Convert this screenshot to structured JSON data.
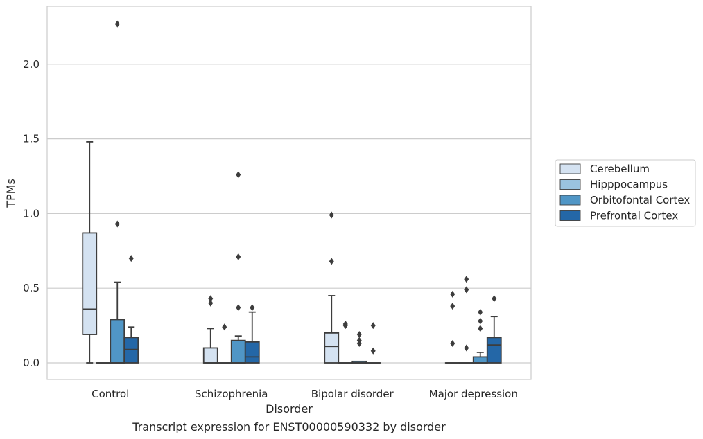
{
  "chart_data": {
    "type": "box",
    "title": "",
    "caption": "Transcript expression for ENST00000590332 by disorder",
    "xlabel": "Disorder",
    "ylabel": "TPMs",
    "ylim": [
      -0.11,
      2.4
    ],
    "yticks": [
      "0.0",
      "0.5",
      "1.0",
      "1.5",
      "2.0"
    ],
    "grid": "horizontal",
    "legend_position": "right",
    "categories": [
      "Control",
      "Schizophrenia",
      "Bipolar disorder",
      "Major depression"
    ],
    "series": [
      {
        "name": "Cerebellum",
        "color": "#d4e2f1",
        "boxes": [
          {
            "q1": 0.19,
            "median": 0.36,
            "q3": 0.87,
            "whislo": 0.0,
            "whishi": 1.48,
            "fliers": []
          },
          {
            "q1": 0.0,
            "median": 0.0,
            "q3": 0.1,
            "whislo": 0.0,
            "whishi": 0.23,
            "fliers": [
              0.43,
              0.4
            ]
          },
          {
            "q1": 0.0,
            "median": 0.11,
            "q3": 0.2,
            "whislo": 0.0,
            "whishi": 0.45,
            "fliers": [
              0.99,
              0.68
            ]
          },
          {
            "q1": 0.0,
            "median": 0.0,
            "q3": 0.0,
            "whislo": 0.0,
            "whishi": 0.0,
            "fliers": [
              0.46,
              0.38,
              0.13
            ]
          }
        ]
      },
      {
        "name": "Hipppocampus",
        "color": "#9ac3df",
        "boxes": [
          {
            "q1": 0.0,
            "median": 0.0,
            "q3": 0.0,
            "whislo": 0.0,
            "whishi": 0.0,
            "fliers": []
          },
          {
            "q1": 0.0,
            "median": 0.0,
            "q3": 0.0,
            "whislo": 0.0,
            "whishi": 0.0,
            "fliers": [
              0.24
            ]
          },
          {
            "q1": 0.0,
            "median": 0.0,
            "q3": 0.0,
            "whislo": 0.0,
            "whishi": 0.0,
            "fliers": [
              0.26,
              0.25
            ]
          },
          {
            "q1": 0.0,
            "median": 0.0,
            "q3": 0.0,
            "whislo": 0.0,
            "whishi": 0.0,
            "fliers": [
              0.56,
              0.49,
              0.1
            ]
          }
        ]
      },
      {
        "name": "Orbitofontal Cortex",
        "color": "#5096c6",
        "boxes": [
          {
            "q1": 0.0,
            "median": 0.0,
            "q3": 0.29,
            "whislo": 0.0,
            "whishi": 0.54,
            "fliers": [
              2.27,
              0.93
            ]
          },
          {
            "q1": 0.0,
            "median": 0.0,
            "q3": 0.15,
            "whislo": 0.0,
            "whishi": 0.18,
            "fliers": [
              1.26,
              0.71,
              0.37
            ]
          },
          {
            "q1": 0.0,
            "median": 0.0,
            "q3": 0.01,
            "whislo": 0.0,
            "whishi": 0.01,
            "fliers": [
              0.19,
              0.15,
              0.13
            ]
          },
          {
            "q1": 0.0,
            "median": 0.0,
            "q3": 0.04,
            "whislo": 0.0,
            "whishi": 0.07,
            "fliers": [
              0.34,
              0.28,
              0.23
            ]
          }
        ]
      },
      {
        "name": "Prefrontal Cortex",
        "color": "#2467a7",
        "boxes": [
          {
            "q1": 0.0,
            "median": 0.09,
            "q3": 0.17,
            "whislo": 0.0,
            "whishi": 0.24,
            "fliers": [
              0.7
            ]
          },
          {
            "q1": 0.0,
            "median": 0.04,
            "q3": 0.14,
            "whislo": 0.0,
            "whishi": 0.34,
            "fliers": [
              0.37
            ]
          },
          {
            "q1": 0.0,
            "median": 0.0,
            "q3": 0.0,
            "whislo": 0.0,
            "whishi": 0.0,
            "fliers": [
              0.25,
              0.08
            ]
          },
          {
            "q1": 0.0,
            "median": 0.12,
            "q3": 0.17,
            "whislo": 0.0,
            "whishi": 0.31,
            "fliers": [
              0.43
            ]
          }
        ]
      }
    ]
  }
}
